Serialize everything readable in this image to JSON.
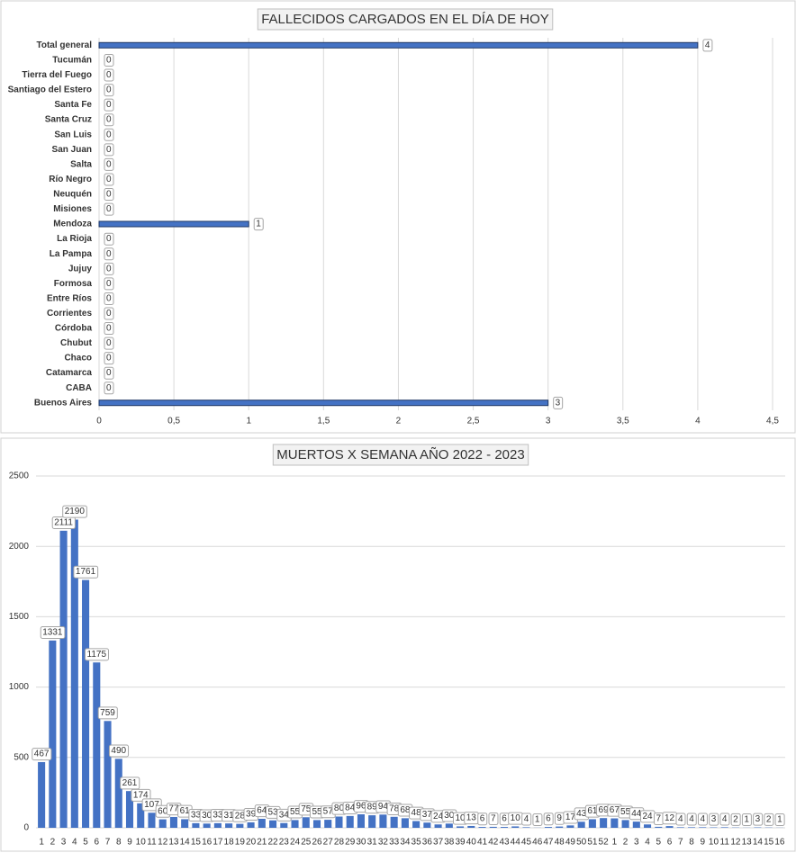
{
  "chart_data": [
    {
      "type": "bar",
      "orientation": "horizontal",
      "title": "FALLECIDOS CARGADOS EN EL DÍA DE HOY",
      "categories": [
        "Total general",
        "Tucumán",
        "Tierra del Fuego",
        "Santiago del Estero",
        "Santa Fe",
        "Santa Cruz",
        "San Luis",
        "San Juan",
        "Salta",
        "Río Negro",
        "Neuquén",
        "Misiones",
        "Mendoza",
        "La Rioja",
        "La Pampa",
        "Jujuy",
        "Formosa",
        "Entre Ríos",
        "Corrientes",
        "Córdoba",
        "Chubut",
        "Chaco",
        "Catamarca",
        "CABA",
        "Buenos Aires"
      ],
      "values": [
        4,
        0,
        0,
        0,
        0,
        0,
        0,
        0,
        0,
        0,
        0,
        0,
        1,
        0,
        0,
        0,
        0,
        0,
        0,
        0,
        0,
        0,
        0,
        0,
        3
      ],
      "color": "#4472c4",
      "xlim": [
        0,
        4.5
      ],
      "xticks": [
        0,
        {
          "value": 0.5,
          "label": "0,5"
        },
        1,
        {
          "value": 1.5,
          "label": "1,5"
        },
        2,
        {
          "value": 2.5,
          "label": "2,5"
        },
        3,
        {
          "value": 3.5,
          "label": "3,5"
        },
        4,
        {
          "value": 4.5,
          "label": "4,5"
        }
      ],
      "grid": true,
      "data_labels": true
    },
    {
      "type": "bar",
      "orientation": "vertical",
      "title": "MUERTOS X SEMANA AÑO 2022 - 2023",
      "categories": [
        "1",
        "2",
        "3",
        "4",
        "5",
        "6",
        "7",
        "8",
        "9",
        "10",
        "11",
        "12",
        "13",
        "14",
        "15",
        "16",
        "17",
        "18",
        "19",
        "20",
        "21",
        "22",
        "23",
        "24",
        "25",
        "26",
        "27",
        "28",
        "29",
        "30",
        "31",
        "32",
        "33",
        "34",
        "35",
        "36",
        "37",
        "38",
        "39",
        "40",
        "41",
        "42",
        "43",
        "44",
        "45",
        "46",
        "47",
        "48",
        "49",
        "50",
        "51",
        "52",
        "1",
        "2",
        "3",
        "4",
        "5",
        "6",
        "7",
        "8",
        "9",
        "10",
        "11",
        "12",
        "13",
        "14",
        "15",
        "16"
      ],
      "values": [
        467,
        1331,
        2111,
        2190,
        1761,
        1175,
        759,
        490,
        261,
        174,
        107,
        60,
        77,
        61,
        33,
        30,
        33,
        31,
        28,
        39,
        64,
        53,
        34,
        55,
        75,
        55,
        57,
        80,
        84,
        96,
        89,
        94,
        78,
        68,
        48,
        37,
        24,
        30,
        10,
        13,
        6,
        7,
        6,
        10,
        4,
        1,
        6,
        9,
        17,
        43,
        61,
        69,
        67,
        55,
        44,
        24,
        7,
        12,
        4,
        4,
        4,
        3,
        4,
        2,
        1,
        3,
        2,
        1
      ],
      "color": "#4472c4",
      "ylim": [
        0,
        2500
      ],
      "yticks": [
        0,
        500,
        1000,
        1500,
        2000,
        2500
      ],
      "grid": true,
      "data_labels": true
    }
  ]
}
